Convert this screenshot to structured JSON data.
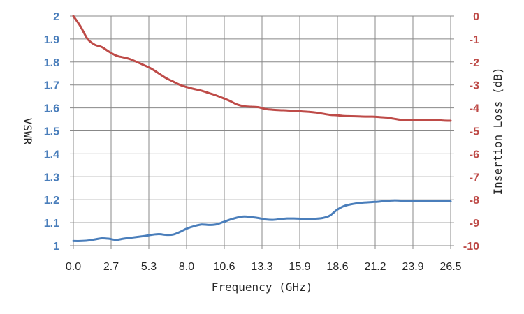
{
  "chart_data": {
    "type": "line",
    "title": "",
    "xlabel": "Frequency (GHz)",
    "ylabel": "VSWR",
    "y2label": "Insertion Loss (dB)",
    "xlim": [
      0,
      26.5
    ],
    "ylim": [
      1,
      2
    ],
    "y2lim": [
      -10,
      0
    ],
    "x_ticks": [
      "0.0",
      "2.7",
      "5.3",
      "8.0",
      "10.6",
      "13.3",
      "15.9",
      "18.6",
      "21.2",
      "23.9",
      "26.5"
    ],
    "y_ticks": [
      "1",
      "1.1",
      "1.2",
      "1.3",
      "1.4",
      "1.5",
      "1.6",
      "1.7",
      "1.8",
      "1.9",
      "2"
    ],
    "y2_ticks": [
      "-10",
      "-9",
      "-8",
      "-7",
      "-6",
      "-5",
      "-4",
      "-3",
      "-2",
      "-1",
      "0"
    ],
    "grid": true,
    "legend": "none",
    "colors": {
      "vswr": "#4a7ebb",
      "insertion_loss": "#be4b48",
      "grid": "#888888",
      "text": "#262626"
    },
    "series": [
      {
        "axis": "left",
        "x": [
          0,
          0.5,
          1.0,
          1.5,
          2.0,
          2.5,
          3.0,
          3.5,
          4.0,
          5.0,
          5.5,
          6.0,
          6.5,
          7.0,
          7.5,
          8.0,
          8.5,
          9.0,
          9.5,
          10.0,
          10.5,
          11.0,
          11.5,
          12.0,
          12.5,
          13.0,
          13.5,
          14.0,
          14.5,
          15.0,
          15.5,
          16.0,
          16.5,
          17.0,
          17.5,
          18.0,
          18.5,
          19.0,
          19.5,
          20.0,
          20.5,
          21.0,
          21.5,
          22.0,
          22.5,
          23.0,
          23.5,
          24.0,
          24.5,
          25.0,
          25.5,
          26.0,
          26.5
        ],
        "values": [
          1.02,
          1.02,
          1.022,
          1.027,
          1.032,
          1.03,
          1.025,
          1.03,
          1.034,
          1.042,
          1.047,
          1.05,
          1.047,
          1.048,
          1.06,
          1.075,
          1.085,
          1.092,
          1.09,
          1.092,
          1.102,
          1.113,
          1.122,
          1.127,
          1.124,
          1.12,
          1.114,
          1.112,
          1.115,
          1.118,
          1.118,
          1.117,
          1.116,
          1.117,
          1.12,
          1.13,
          1.155,
          1.172,
          1.18,
          1.185,
          1.188,
          1.19,
          1.192,
          1.195,
          1.197,
          1.196,
          1.193,
          1.194,
          1.195,
          1.195,
          1.195,
          1.195,
          1.193
        ]
      },
      {
        "axis": "right",
        "x": [
          0,
          0.5,
          1.0,
          1.5,
          2.0,
          2.5,
          3.0,
          3.5,
          4.0,
          5.0,
          5.5,
          6.0,
          6.5,
          7.0,
          7.5,
          8.0,
          8.5,
          9.0,
          9.5,
          10.0,
          10.5,
          11.0,
          11.5,
          12.0,
          12.5,
          13.0,
          13.5,
          14.0,
          14.5,
          15.0,
          15.5,
          16.0,
          16.5,
          17.0,
          17.5,
          18.0,
          18.5,
          19.0,
          19.5,
          20.0,
          20.5,
          21.0,
          21.5,
          22.0,
          22.5,
          23.0,
          23.5,
          24.0,
          24.5,
          25.0,
          25.5,
          26.0,
          26.5
        ],
        "values": [
          0,
          -0.45,
          -1.0,
          -1.25,
          -1.35,
          -1.55,
          -1.72,
          -1.8,
          -1.88,
          -2.15,
          -2.3,
          -2.5,
          -2.7,
          -2.85,
          -3.0,
          -3.1,
          -3.18,
          -3.25,
          -3.35,
          -3.45,
          -3.57,
          -3.7,
          -3.85,
          -3.93,
          -3.95,
          -3.97,
          -4.05,
          -4.08,
          -4.1,
          -4.11,
          -4.13,
          -4.15,
          -4.17,
          -4.2,
          -4.25,
          -4.3,
          -4.32,
          -4.35,
          -4.36,
          -4.37,
          -4.38,
          -4.38,
          -4.4,
          -4.42,
          -4.47,
          -4.52,
          -4.53,
          -4.53,
          -4.52,
          -4.52,
          -4.53,
          -4.55,
          -4.56
        ]
      }
    ]
  }
}
